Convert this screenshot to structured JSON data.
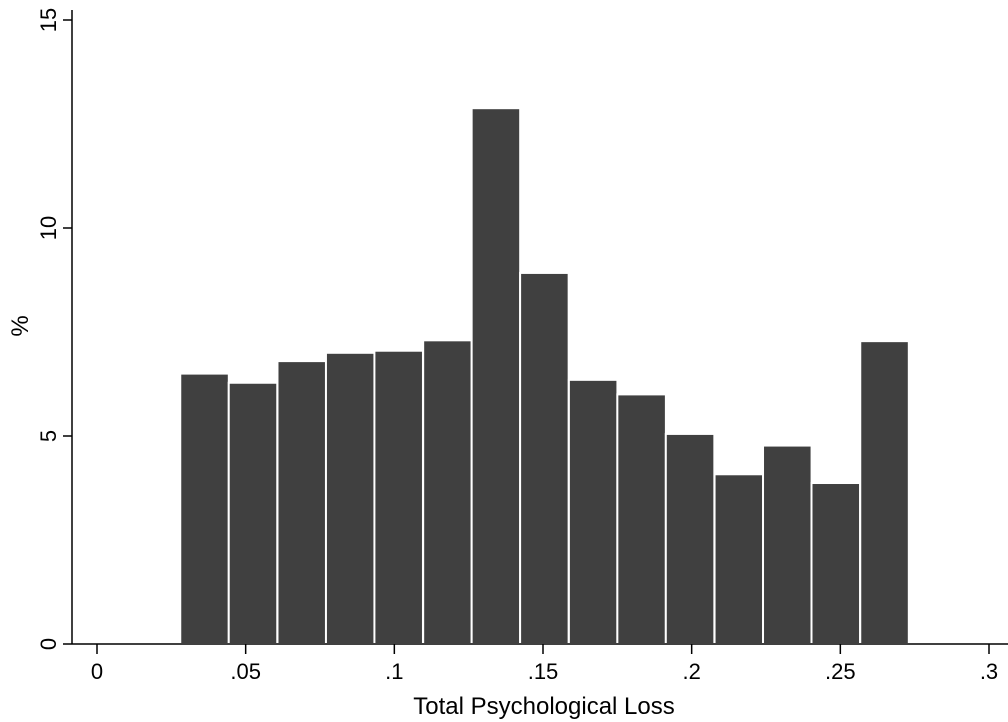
{
  "chart_data": {
    "type": "bar",
    "title": "",
    "xlabel": "Total Psychological Loss",
    "ylabel": "%",
    "xlim": [
      0,
      0.3
    ],
    "ylim": [
      0,
      15
    ],
    "x_ticks": [
      {
        "value": 0,
        "label": "0"
      },
      {
        "value": 0.05,
        "label": ".05"
      },
      {
        "value": 0.1,
        "label": ".1"
      },
      {
        "value": 0.15,
        "label": ".15"
      },
      {
        "value": 0.2,
        "label": ".2"
      },
      {
        "value": 0.25,
        "label": ".25"
      },
      {
        "value": 0.3,
        "label": ".3"
      }
    ],
    "y_ticks": [
      {
        "value": 0,
        "label": "0"
      },
      {
        "value": 5,
        "label": "5"
      },
      {
        "value": 10,
        "label": "10"
      },
      {
        "value": 15,
        "label": "15"
      }
    ],
    "bin_width": 0.01633,
    "bins": [
      {
        "start": 0.028,
        "value": 6.5
      },
      {
        "start": 0.0443,
        "value": 6.28
      },
      {
        "start": 0.0607,
        "value": 6.8
      },
      {
        "start": 0.077,
        "value": 7.0
      },
      {
        "start": 0.0933,
        "value": 7.05
      },
      {
        "start": 0.1097,
        "value": 7.3
      },
      {
        "start": 0.126,
        "value": 12.88
      },
      {
        "start": 0.1423,
        "value": 8.92
      },
      {
        "start": 0.1587,
        "value": 6.35
      },
      {
        "start": 0.175,
        "value": 6.0
      },
      {
        "start": 0.1913,
        "value": 5.05
      },
      {
        "start": 0.2077,
        "value": 4.08
      },
      {
        "start": 0.224,
        "value": 4.77
      },
      {
        "start": 0.2403,
        "value": 3.87
      },
      {
        "start": 0.2567,
        "value": 7.28
      }
    ],
    "bar_color": "#404040",
    "bar_edge_color": "#ffffff",
    "grid": false,
    "legend": "none"
  }
}
